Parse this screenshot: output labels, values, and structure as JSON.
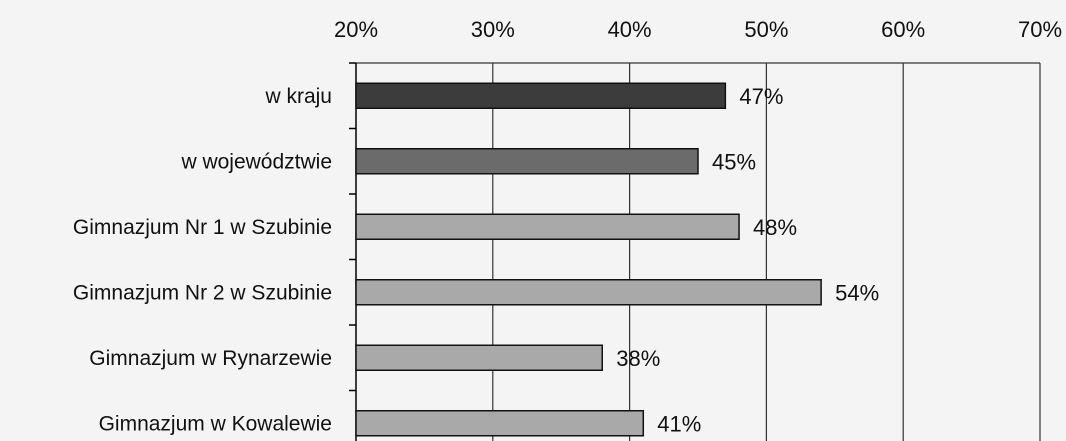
{
  "chart_data": {
    "type": "bar",
    "orientation": "horizontal",
    "title": "",
    "xlabel": "",
    "ylabel": "",
    "xlim": [
      20,
      70
    ],
    "x_ticks": [
      20,
      30,
      40,
      50,
      60,
      70
    ],
    "x_tick_format": "%",
    "grid": true,
    "legend": "none",
    "categories": [
      "w kraju",
      "w województwie",
      "Gimnazjum Nr 1 w Szubinie",
      "Gimnazjum Nr 2 w Szubinie",
      "Gimnazjum w Rynarzewie",
      "Gimnazjum w Kowalewie"
    ],
    "values": [
      47,
      45,
      48,
      54,
      38,
      41
    ],
    "value_labels": [
      "47%",
      "45%",
      "48%",
      "54%",
      "38%",
      "41%"
    ],
    "tick_labels": [
      "20%",
      "30%",
      "40%",
      "50%",
      "60%",
      "70%"
    ],
    "colors": [
      "#3c3c3c",
      "#6b6b6b",
      "#a9a9a9",
      "#a9a9a9",
      "#a9a9a9",
      "#a9a9a9"
    ],
    "grid_color": "#333333",
    "background": "#f4f4f4"
  }
}
